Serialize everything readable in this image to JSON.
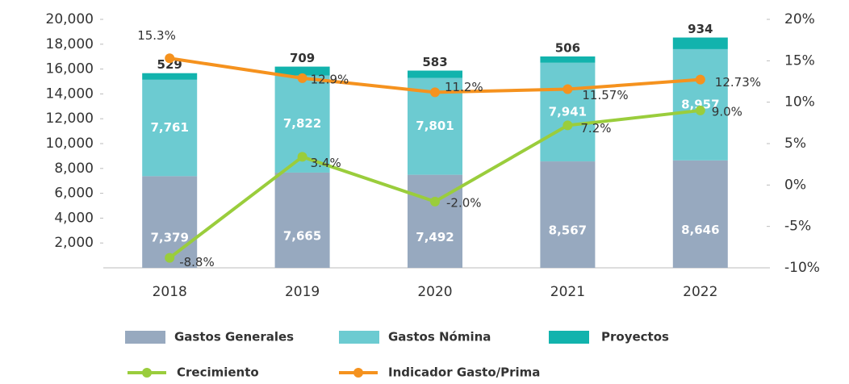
{
  "chart_data": {
    "type": "bar",
    "categories": [
      "2018",
      "2019",
      "2020",
      "2021",
      "2022"
    ],
    "series": [
      {
        "name": "Gastos Generales",
        "color": "#97a9bf",
        "values": [
          7379,
          7665,
          7492,
          8567,
          8646
        ],
        "value_labels": [
          "7,379",
          "7,665",
          "7,492",
          "8,567",
          "8,646"
        ]
      },
      {
        "name": "Gastos Nómina",
        "color": "#6ccbd1",
        "values": [
          7761,
          7822,
          7801,
          7941,
          8957
        ],
        "value_labels": [
          "7,761",
          "7,822",
          "7,801",
          "7,941",
          "8,957"
        ]
      },
      {
        "name": "Proyectos",
        "color": "#12b3ad",
        "values": [
          529,
          709,
          583,
          506,
          934
        ]
      },
      {
        "name": "Crecimiento",
        "type": "line",
        "axis": "y2",
        "color": "#9acd3c",
        "values": [
          -8.8,
          3.4,
          -2.0,
          7.2,
          9.0
        ],
        "value_labels": [
          "-8.8%",
          "3.4%",
          "-2.0%",
          "7.2%",
          "9.0%"
        ]
      },
      {
        "name": "Indicador Gasto/Prima",
        "type": "line",
        "axis": "y2",
        "color": "#f5921e",
        "values": [
          15.3,
          12.9,
          11.2,
          11.57,
          12.73
        ],
        "value_labels": [
          "15.3%",
          "12.9%",
          "11.2%",
          "11.57%",
          "12.73%"
        ]
      }
    ],
    "stacked": true,
    "ylim": [
      0,
      20000
    ],
    "yticks": [
      {
        "value": 2000,
        "label": "2,000"
      },
      {
        "value": 4000,
        "label": "4,000"
      },
      {
        "value": 6000,
        "label": "6,000"
      },
      {
        "value": 8000,
        "label": "8,000"
      },
      {
        "value": 10000,
        "label": "10,000"
      },
      {
        "value": 12000,
        "label": "12,000"
      },
      {
        "value": 14000,
        "label": "14,000"
      },
      {
        "value": 16000,
        "label": "16,000"
      },
      {
        "value": 18000,
        "label": "18,000"
      },
      {
        "value": 20000,
        "label": "20,000"
      }
    ],
    "y2lim": [
      -10,
      20
    ],
    "y2ticks": [
      {
        "value": 20,
        "label": "20%"
      },
      {
        "value": 15,
        "label": "15%"
      },
      {
        "value": 10,
        "label": "10%"
      },
      {
        "value": 5,
        "label": "5%"
      },
      {
        "value": 0,
        "label": "0%"
      },
      {
        "value": -5,
        "label": "-5%"
      },
      {
        "value": -10,
        "label": "-10%"
      }
    ]
  }
}
